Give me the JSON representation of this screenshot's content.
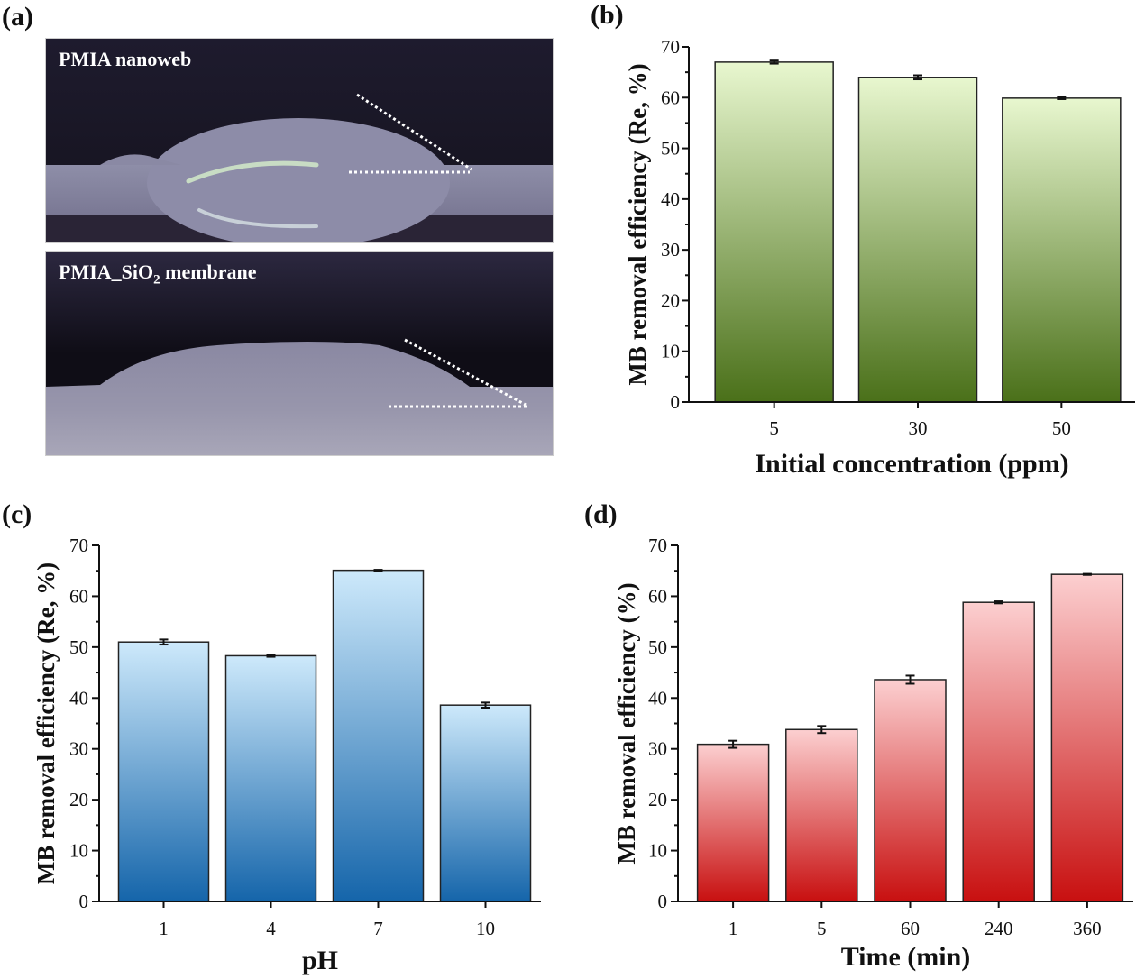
{
  "panels": {
    "a": {
      "label": "(a)",
      "images": [
        {
          "caption": "PMIA nanoweb"
        },
        {
          "caption_main": "PMIA_SiO",
          "caption_sub": "2",
          "caption_tail": " membrane"
        }
      ]
    },
    "b": {
      "label": "(b)"
    },
    "c": {
      "label": "(c)"
    },
    "d": {
      "label": "(d)"
    }
  },
  "chart_data": [
    {
      "id": "b",
      "type": "bar",
      "categories": [
        "5",
        "30",
        "50"
      ],
      "values": [
        67.0,
        64.0,
        59.9
      ],
      "errors": [
        0.3,
        0.4,
        0.2
      ],
      "xlabel": "Initial concentration (ppm)",
      "ylabel": "MB removal efficiency (Re, %)",
      "ylim": [
        0,
        70
      ],
      "yticks": [
        0,
        10,
        20,
        30,
        40,
        50,
        60,
        70
      ],
      "gradient": {
        "top": "#e8f7cf",
        "bottom": "#4a7019"
      }
    },
    {
      "id": "c",
      "type": "bar",
      "categories": [
        "1",
        "4",
        "7",
        "10"
      ],
      "values": [
        51.0,
        48.3,
        65.1,
        38.6
      ],
      "errors": [
        0.5,
        0.2,
        0.1,
        0.5
      ],
      "xlabel": "pH",
      "ylabel": "MB removal efficiency (Re, %)",
      "ylim": [
        0,
        70
      ],
      "yticks": [
        0,
        10,
        20,
        30,
        40,
        50,
        60,
        70
      ],
      "gradient": {
        "top": "#cde9fb",
        "bottom": "#1565aa"
      }
    },
    {
      "id": "d",
      "type": "bar",
      "categories": [
        "1",
        "5",
        "60",
        "240",
        "360"
      ],
      "values": [
        30.9,
        33.8,
        43.6,
        58.8,
        64.3
      ],
      "errors": [
        0.7,
        0.7,
        0.8,
        0.2,
        0.1
      ],
      "xlabel": "Time (min)",
      "ylabel": "MB removal efficiency (%)",
      "ylim": [
        0,
        70
      ],
      "yticks": [
        0,
        10,
        20,
        30,
        40,
        50,
        60,
        70
      ],
      "gradient": {
        "top": "#fccfd0",
        "bottom": "#c81010"
      }
    }
  ]
}
